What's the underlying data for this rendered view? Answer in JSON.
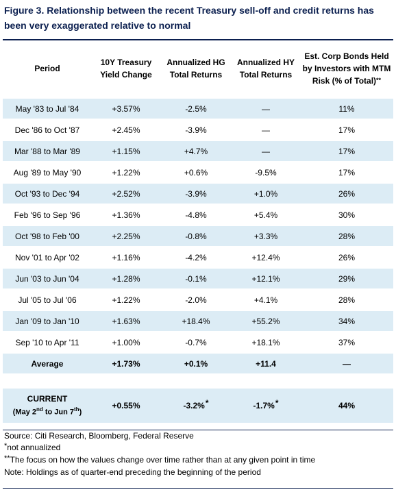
{
  "figure": {
    "title": "Figure 3. Relationship between the recent Treasury sell-off and credit returns has been very exaggerated relative to normal"
  },
  "table": {
    "headers": {
      "period": "Period",
      "treasury": "10Y Treasury Yield Change",
      "hg": "Annualized HG Total Returns",
      "hy": "Annualized HY Total Returns",
      "mtm": "Est. Corp Bonds Held by Investors with MTM Risk (% of Total)",
      "mtm_mark": "**"
    },
    "rows": [
      {
        "period": "May '83 to Jul '84",
        "treasury": "+3.57%",
        "hg": "-2.5%",
        "hy": "—",
        "mtm": "11%"
      },
      {
        "period": "Dec '86 to Oct '87",
        "treasury": "+2.45%",
        "hg": "-3.9%",
        "hy": "—",
        "mtm": "17%"
      },
      {
        "period": "Mar '88 to Mar '89",
        "treasury": "+1.15%",
        "hg": "+4.7%",
        "hy": "—",
        "mtm": "17%"
      },
      {
        "period": "Aug '89 to May '90",
        "treasury": "+1.22%",
        "hg": "+0.6%",
        "hy": "-9.5%",
        "mtm": "17%"
      },
      {
        "period": "Oct '93 to Dec '94",
        "treasury": "+2.52%",
        "hg": "-3.9%",
        "hy": "+1.0%",
        "mtm": "26%"
      },
      {
        "period": "Feb '96 to Sep '96",
        "treasury": "+1.36%",
        "hg": "-4.8%",
        "hy": "+5.4%",
        "mtm": "30%"
      },
      {
        "period": "Oct '98 to Feb '00",
        "treasury": "+2.25%",
        "hg": "-0.8%",
        "hy": "+3.3%",
        "mtm": "28%"
      },
      {
        "period": "Nov '01 to Apr '02",
        "treasury": "+1.16%",
        "hg": "-4.2%",
        "hy": "+12.4%",
        "mtm": "26%"
      },
      {
        "period": "Jun '03 to Jun '04",
        "treasury": "+1.28%",
        "hg": "-0.1%",
        "hy": "+12.1%",
        "mtm": "29%"
      },
      {
        "period": "Jul '05 to Jul '06",
        "treasury": "+1.22%",
        "hg": "-2.0%",
        "hy": "+4.1%",
        "mtm": "28%"
      },
      {
        "period": "Jan '09 to Jan '10",
        "treasury": "+1.63%",
        "hg": "+18.4%",
        "hy": "+55.2%",
        "mtm": "34%"
      },
      {
        "period": "Sep '10 to Apr '11",
        "treasury": "+1.00%",
        "hg": "-0.7%",
        "hy": "+18.1%",
        "mtm": "37%"
      }
    ],
    "average": {
      "period": "Average",
      "treasury": "+1.73%",
      "hg": "+0.1%",
      "hy": "+11.4",
      "mtm": "—"
    },
    "current": {
      "label": "CURRENT",
      "range_open": "(May 2",
      "range_sup1": "nd",
      "range_mid": " to Jun 7",
      "range_sup2": "th",
      "range_close": ")",
      "treasury": "+0.55%",
      "hg": "-3.2%",
      "hg_mark": "*",
      "hy": "-1.7%",
      "hy_mark": "*",
      "mtm": "44%"
    }
  },
  "notes": {
    "source": "Source: Citi Research, Bloomberg, Federal Reserve",
    "not_annualized_mark": "*",
    "not_annualized": "not annualized",
    "focus_mark": "**",
    "focus": "The focus on how the values change over time rather than at any given point in time",
    "holdings": "Note: Holdings as of quarter-end preceding the beginning of the period"
  },
  "colors": {
    "row_shade": "#dcecf5",
    "title": "#0b1f4f",
    "rule": "#0b1f4f"
  }
}
